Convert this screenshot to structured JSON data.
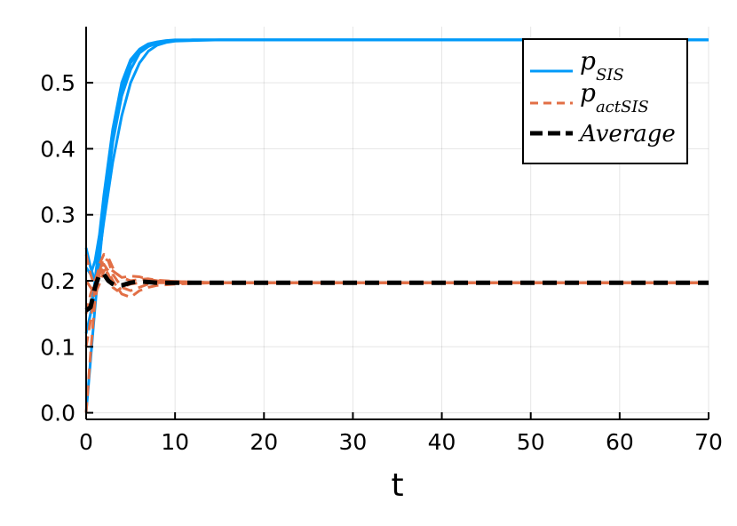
{
  "chart_data": {
    "type": "line",
    "xlabel": "t",
    "ylabel": "",
    "xlim": [
      0,
      70
    ],
    "ylim": [
      -0.01,
      0.585
    ],
    "x_ticks": [
      0,
      10,
      20,
      30,
      40,
      50,
      60,
      70
    ],
    "x_tick_labels": [
      "0",
      "10",
      "20",
      "30",
      "40",
      "50",
      "60",
      "70"
    ],
    "y_ticks": [
      0.0,
      0.1,
      0.2,
      0.3,
      0.4,
      0.5
    ],
    "y_tick_labels": [
      "0.0",
      "0.1",
      "0.2",
      "0.3",
      "0.4",
      "0.5"
    ],
    "grid": true,
    "legend_position": "top-right",
    "series": [
      {
        "name": "p_SIS",
        "label_main": "p",
        "label_sub": "SIS",
        "color": "#009AF9",
        "style": "solid",
        "bundle": [
          {
            "x": [
              0,
              0.5,
              1,
              1.5,
              2,
              3,
              4,
              5,
              6,
              7,
              8,
              9,
              10,
              12,
              15,
              20,
              30,
              40,
              50,
              60,
              70
            ],
            "y": [
              0.0,
              0.08,
              0.16,
              0.23,
              0.3,
              0.41,
              0.48,
              0.52,
              0.545,
              0.555,
              0.56,
              0.563,
              0.564,
              0.565,
              0.565,
              0.565,
              0.565,
              0.565,
              0.565,
              0.565,
              0.565
            ]
          },
          {
            "x": [
              0,
              0.5,
              1,
              1.5,
              2,
              3,
              4,
              5,
              6,
              7,
              8,
              9,
              10,
              12,
              15,
              20,
              30,
              40,
              50,
              60,
              70
            ],
            "y": [
              0.25,
              0.22,
              0.2,
              0.24,
              0.29,
              0.38,
              0.45,
              0.5,
              0.53,
              0.548,
              0.557,
              0.561,
              0.563,
              0.564,
              0.565,
              0.565,
              0.565,
              0.565,
              0.565,
              0.565,
              0.565
            ]
          },
          {
            "x": [
              0,
              0.5,
              1,
              1.5,
              2,
              3,
              4,
              5,
              6,
              7,
              8,
              9,
              10,
              12,
              15,
              20,
              30,
              40,
              50,
              60,
              70
            ],
            "y": [
              0.12,
              0.15,
              0.2,
              0.26,
              0.32,
              0.42,
              0.49,
              0.53,
              0.548,
              0.557,
              0.561,
              0.563,
              0.564,
              0.565,
              0.565,
              0.565,
              0.565,
              0.565,
              0.565,
              0.565,
              0.565
            ]
          },
          {
            "x": [
              0,
              0.5,
              1,
              1.5,
              2,
              3,
              4,
              5,
              6,
              7,
              8,
              9,
              10,
              12,
              15,
              20,
              30,
              40,
              50,
              60,
              70
            ],
            "y": [
              0.22,
              0.21,
              0.23,
              0.27,
              0.33,
              0.43,
              0.5,
              0.535,
              0.551,
              0.559,
              0.562,
              0.564,
              0.565,
              0.565,
              0.565,
              0.565,
              0.565,
              0.565,
              0.565,
              0.565,
              0.565
            ]
          }
        ]
      },
      {
        "name": "p_actSIS",
        "label_main": "p",
        "label_sub": "actSIS",
        "color": "#E26F46",
        "style": "dashed",
        "bundle": [
          {
            "x": [
              0,
              0.5,
              1,
              1.5,
              2,
              2.5,
              3,
              3.5,
              4,
              5,
              6,
              7,
              8,
              10,
              12,
              15,
              20,
              30,
              40,
              50,
              60,
              70
            ],
            "y": [
              0.0,
              0.09,
              0.17,
              0.21,
              0.22,
              0.21,
              0.19,
              0.185,
              0.19,
              0.195,
              0.197,
              0.198,
              0.198,
              0.197,
              0.197,
              0.197,
              0.197,
              0.197,
              0.197,
              0.197,
              0.197,
              0.197
            ]
          },
          {
            "x": [
              0,
              0.5,
              1,
              1.5,
              2,
              2.5,
              3,
              3.5,
              4,
              5,
              6,
              7,
              8,
              10,
              12,
              15,
              20,
              30,
              40,
              50,
              60,
              70
            ],
            "y": [
              0.24,
              0.21,
              0.19,
              0.215,
              0.235,
              0.23,
              0.21,
              0.2,
              0.19,
              0.185,
              0.19,
              0.195,
              0.197,
              0.197,
              0.197,
              0.197,
              0.197,
              0.197,
              0.197,
              0.197,
              0.197,
              0.197
            ]
          },
          {
            "x": [
              0,
              0.5,
              1,
              1.5,
              2,
              2.5,
              3,
              3.5,
              4,
              5,
              6,
              7,
              8,
              10,
              12,
              15,
              20,
              30,
              40,
              50,
              60,
              70
            ],
            "y": [
              0.15,
              0.18,
              0.2,
              0.22,
              0.225,
              0.215,
              0.2,
              0.19,
              0.18,
              0.175,
              0.185,
              0.19,
              0.193,
              0.195,
              0.196,
              0.197,
              0.197,
              0.197,
              0.197,
              0.197,
              0.197,
              0.197
            ]
          },
          {
            "x": [
              0,
              0.5,
              1,
              1.5,
              2,
              2.5,
              3,
              3.5,
              4,
              5,
              6,
              7,
              8,
              10,
              12,
              15,
              20,
              30,
              40,
              50,
              60,
              70
            ],
            "y": [
              0.2,
              0.19,
              0.18,
              0.195,
              0.215,
              0.22,
              0.215,
              0.21,
              0.205,
              0.2,
              0.202,
              0.203,
              0.201,
              0.199,
              0.198,
              0.197,
              0.197,
              0.197,
              0.197,
              0.197,
              0.197,
              0.197
            ]
          },
          {
            "x": [
              0,
              0.5,
              1,
              1.5,
              2,
              2.5,
              3,
              3.5,
              4,
              5,
              6,
              7,
              8,
              10,
              12,
              15,
              20,
              30,
              40,
              50,
              60,
              70
            ],
            "y": [
              0.1,
              0.14,
              0.19,
              0.225,
              0.24,
              0.235,
              0.22,
              0.21,
              0.205,
              0.207,
              0.206,
              0.202,
              0.2,
              0.199,
              0.198,
              0.197,
              0.197,
              0.197,
              0.197,
              0.197,
              0.197,
              0.197
            ]
          }
        ]
      },
      {
        "name": "Average",
        "label_main": "Average",
        "label_sub": "",
        "color": "#000000",
        "style": "dashed-bold",
        "bundle": [
          {
            "x": [
              0,
              0.5,
              1,
              1.5,
              2,
              2.5,
              3,
              3.5,
              4,
              5,
              6,
              7,
              8,
              10,
              12,
              15,
              20,
              30,
              40,
              50,
              60,
              70
            ],
            "y": [
              0.155,
              0.16,
              0.19,
              0.21,
              0.21,
              0.2,
              0.195,
              0.192,
              0.193,
              0.197,
              0.199,
              0.198,
              0.197,
              0.197,
              0.197,
              0.197,
              0.197,
              0.197,
              0.197,
              0.197,
              0.197,
              0.197
            ]
          }
        ]
      }
    ]
  }
}
